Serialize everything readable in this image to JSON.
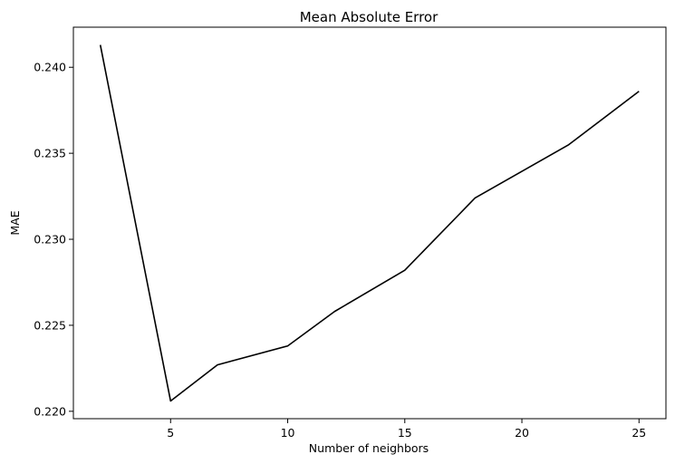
{
  "chart_data": {
    "type": "line",
    "title": "Mean Absolute Error",
    "xlabel": "Number of neighbors",
    "ylabel": "MAE",
    "x": [
      2,
      5,
      7,
      10,
      12,
      15,
      18,
      22,
      25
    ],
    "series": [
      {
        "values": [
          0.2413,
          0.2206,
          0.2227,
          0.2238,
          0.2258,
          0.2282,
          0.2324,
          0.2355,
          0.2386
        ]
      }
    ],
    "xlim": [
      0.85,
      26.15
    ],
    "ylim": [
      0.21957,
      0.24233
    ],
    "xticks": [
      5,
      10,
      15,
      20,
      25
    ],
    "xtick_labels": [
      "5",
      "10",
      "15",
      "20",
      "25"
    ],
    "yticks": [
      0.22,
      0.225,
      0.23,
      0.235,
      0.24
    ],
    "ytick_labels": [
      "0.220",
      "0.225",
      "0.230",
      "0.235",
      "0.240"
    ],
    "grid": false,
    "line_color": "#000000"
  }
}
